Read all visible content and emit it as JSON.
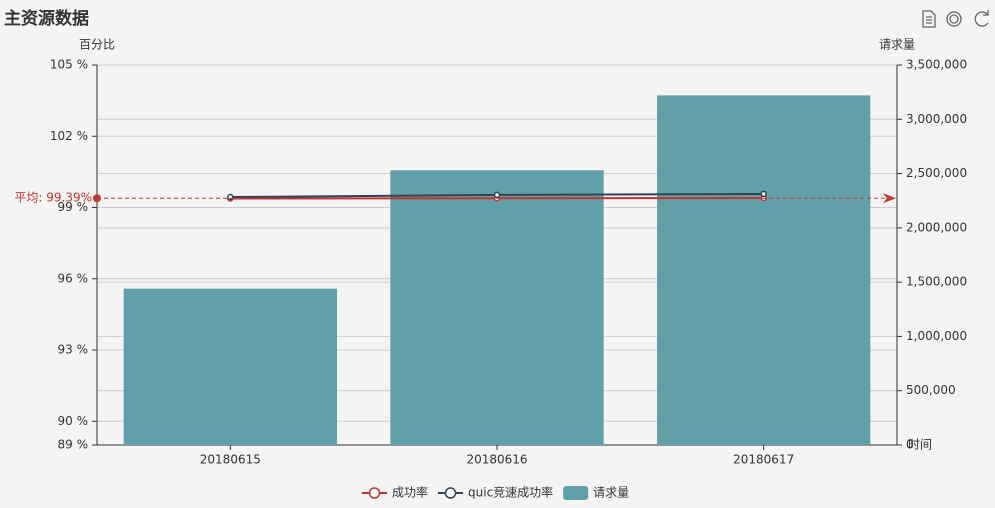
{
  "chart_data": {
    "type": "bar",
    "title": "主资源数据",
    "y_label": "百分比",
    "y2_label": "请求量",
    "x_label": "时间",
    "categories": [
      "20180615",
      "20180616",
      "20180617"
    ],
    "series": [
      {
        "name": "成功率",
        "type": "line",
        "color": "#c23531",
        "values": [
          99.38,
          99.39,
          99.4
        ]
      },
      {
        "name": "quic竞速成功率",
        "type": "line",
        "color": "#2f4554",
        "values": [
          99.44,
          99.53,
          99.57
        ]
      },
      {
        "name": "请求量",
        "type": "bar",
        "color": "#61a0a8",
        "axis": "y2",
        "values": [
          1440000,
          2530000,
          3220000
        ]
      }
    ],
    "mark_line": {
      "value": 99.39,
      "label": "平均: 99.39%",
      "color": "#c23531"
    },
    "ylim": [
      89,
      105
    ],
    "yticks": [
      {
        "value": 89,
        "label": "89 %"
      },
      {
        "value": 90,
        "label": "90 %"
      },
      {
        "value": 93,
        "label": "93 %"
      },
      {
        "value": 96,
        "label": "96 %"
      },
      {
        "value": 99,
        "label": "99 %"
      },
      {
        "value": 102,
        "label": "102 %"
      },
      {
        "value": 105,
        "label": "105 %"
      }
    ],
    "y2lim": [
      0,
      3500000
    ],
    "y2ticks": [
      0,
      {
        "value": 500000,
        "label": "500,000"
      },
      {
        "value": 1000000,
        "label": "1,000,000"
      },
      {
        "value": 1500000,
        "label": "1,500,000"
      },
      {
        "value": 2000000,
        "label": "2,000,000"
      },
      {
        "value": 2500000,
        "label": "2,500,000"
      },
      {
        "value": 3000000,
        "label": "3,000,000"
      },
      {
        "value": 3500000,
        "label": "3,500,000"
      }
    ],
    "grid": true,
    "legend": "bottom"
  }
}
